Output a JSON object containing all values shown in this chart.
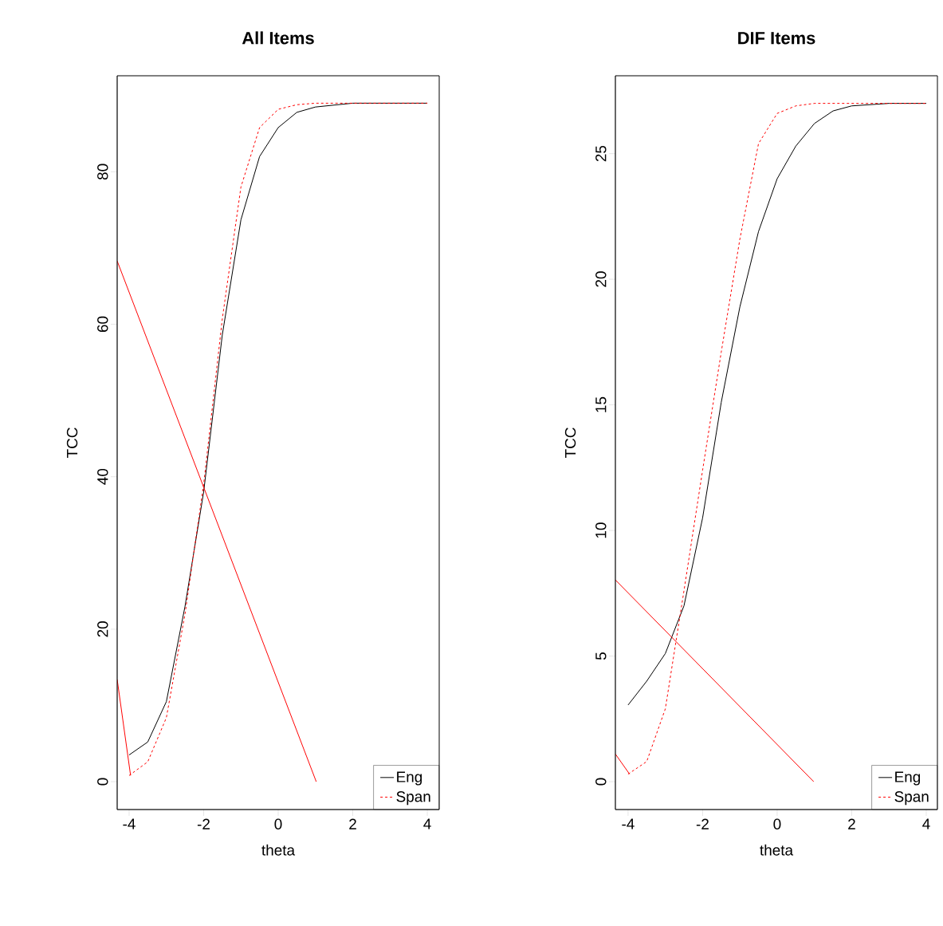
{
  "chart_data": [
    {
      "type": "line",
      "title": "All Items",
      "xlabel": "theta",
      "ylabel": "TCC",
      "xlim": [
        -4.32,
        4.32
      ],
      "ylim": [
        -3.66,
        92.6
      ],
      "xticks": [
        -4,
        -2,
        0,
        2,
        4
      ],
      "yticks": [
        0,
        20,
        40,
        60,
        80
      ],
      "legend": "bottom right",
      "grid": false,
      "marker": "none",
      "series": [
        {
          "name": "Eng",
          "color": "#000000",
          "line_style": "solid",
          "x": [
            -4,
            -3.5,
            -3,
            -2.5,
            -2,
            -1.5,
            -1,
            -0.5,
            0,
            0.5,
            1,
            2,
            3,
            4
          ],
          "values": [
            3.5,
            5.2,
            10.5,
            23,
            38,
            58.6,
            73.7,
            82,
            85.8,
            87.8,
            88.5,
            89,
            89,
            89
          ]
        },
        {
          "name": "Span",
          "color": "#ff0000",
          "line_style": "dashed",
          "x": [
            -4,
            -3.5,
            -3,
            -2.5,
            -2,
            -1.5,
            -1,
            -0.5,
            0,
            0.5,
            1,
            2,
            3,
            4
          ],
          "values": [
            0.8,
            2.6,
            8.4,
            22,
            39,
            60.7,
            78,
            85.8,
            88.2,
            88.8,
            89,
            89,
            89,
            89
          ]
        },
        {
          "color": "#ff0000",
          "line_style": "solid",
          "x": [
            -4.32,
            1.02
          ],
          "values": [
            68.3,
            0
          ]
        },
        {
          "color": "#ff0000",
          "line_style": "solid",
          "x": [
            -4.32,
            -3.96
          ],
          "values": [
            13.4,
            0.8
          ]
        }
      ]
    },
    {
      "type": "line",
      "title": "DIF Items",
      "xlabel": "theta",
      "ylabel": "TCC",
      "xlim": [
        -4.34,
        4.3
      ],
      "ylim": [
        -1.11,
        28.1
      ],
      "xticks": [
        -4,
        -2,
        0,
        2,
        4
      ],
      "yticks": [
        0,
        5,
        10,
        15,
        20,
        25
      ],
      "legend": "bottom right",
      "grid": false,
      "marker": "none",
      "series": [
        {
          "name": "Eng",
          "color": "#000000",
          "line_style": "solid",
          "x": [
            -4,
            -3.5,
            -3,
            -2.5,
            -2,
            -1.5,
            -1,
            -0.5,
            0,
            0.5,
            1,
            1.5,
            2,
            3,
            4
          ],
          "values": [
            3.05,
            4.0,
            5.1,
            7.0,
            10.5,
            15.1,
            18.9,
            21.9,
            24.0,
            25.3,
            26.2,
            26.7,
            26.9,
            27,
            27
          ]
        },
        {
          "name": "Span",
          "color": "#ff0000",
          "line_style": "dashed",
          "x": [
            -4,
            -3.5,
            -3,
            -2.5,
            -2,
            -1.5,
            -1,
            -0.5,
            0,
            0.5,
            1,
            2,
            3,
            4
          ],
          "values": [
            0.3,
            0.8,
            2.9,
            7.6,
            12.4,
            17.1,
            21.6,
            25.4,
            26.6,
            26.9,
            27,
            27,
            27,
            27
          ]
        },
        {
          "color": "#ff0000",
          "line_style": "solid",
          "x": [
            -4.34,
            0.98
          ],
          "values": [
            8.03,
            0
          ]
        },
        {
          "color": "#ff0000",
          "line_style": "solid",
          "x": [
            -4.34,
            -3.96
          ],
          "values": [
            1.1,
            0.3
          ]
        }
      ]
    }
  ]
}
